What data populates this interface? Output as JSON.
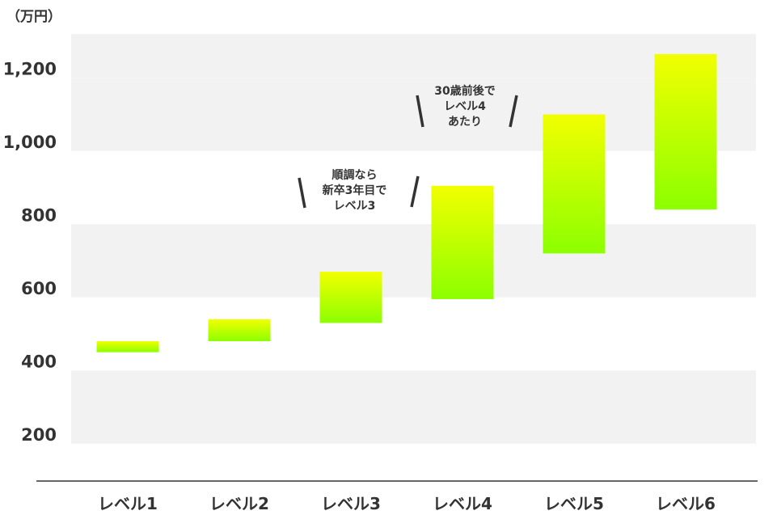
{
  "chart_data": {
    "type": "bar",
    "subtype": "floating-range",
    "unit": "（万円）",
    "categories": [
      "レベル1",
      "レベル2",
      "レベル3",
      "レベル4",
      "レベル5",
      "レベル6"
    ],
    "series": [
      {
        "ranges": [
          [
            450,
            480
          ],
          [
            480,
            540
          ],
          [
            530,
            670
          ],
          [
            595,
            905
          ],
          [
            720,
            1100
          ],
          [
            840,
            1265
          ]
        ]
      }
    ],
    "y_ticks": [
      {
        "value": 200,
        "label": "200"
      },
      {
        "value": 400,
        "label": "400"
      },
      {
        "value": 600,
        "label": "600"
      },
      {
        "value": 800,
        "label": "800"
      },
      {
        "value": 1000,
        "label": "1,000"
      },
      {
        "value": 1200,
        "label": "1,200"
      }
    ],
    "ylim": [
      100,
      1300
    ],
    "grid": "alternating horizontal bands",
    "annotations": [
      {
        "category": "レベル3",
        "text": "順調なら\n新卒3年目で\nレベル3"
      },
      {
        "category": "レベル4",
        "text": "30歳前後で\nレベル4\nあたり"
      }
    ],
    "colors": {
      "bar_top": "#f2ff00",
      "bar_bottom": "#8cff00",
      "band": "#f2f2f2",
      "text": "#333333",
      "axis": "#666666"
    }
  }
}
